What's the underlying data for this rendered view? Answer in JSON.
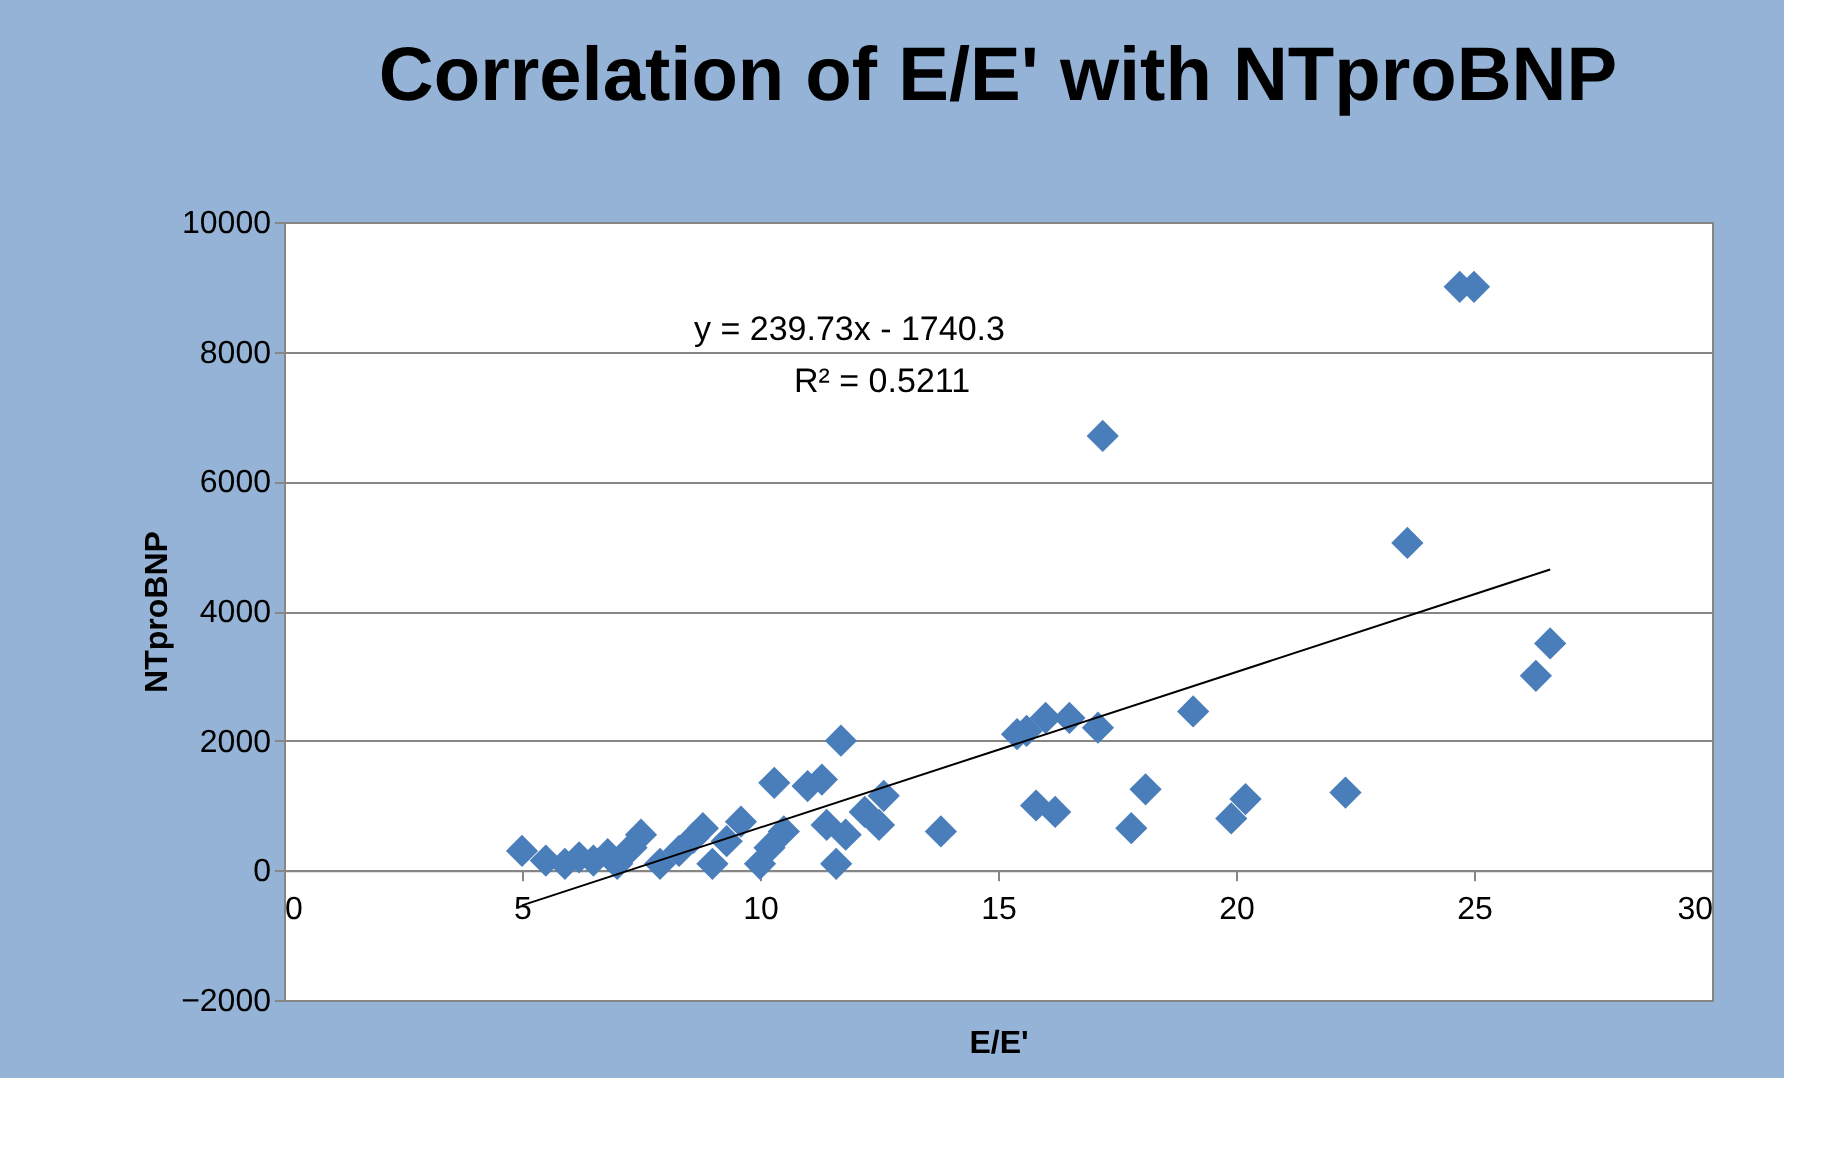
{
  "chart_data": {
    "type": "scatter",
    "title": "Correlation of E/E' with NTproBNP",
    "xlabel": "E/E'",
    "ylabel": "NTproBNP",
    "xlim": [
      0,
      30
    ],
    "xticks": [
      0,
      5,
      10,
      15,
      20,
      25,
      30
    ],
    "ylim": [
      -2000,
      10000
    ],
    "yticks": [
      -2000,
      0,
      2000,
      4000,
      6000,
      8000,
      10000
    ],
    "grid": "y",
    "marker": "diamond",
    "annotations": [
      "y = 239.73x - 1740.3",
      "R² = 0.5211"
    ],
    "series": [
      {
        "color": "#4a7ebb",
        "x": [
          5,
          5.5,
          5.9,
          6.2,
          6.5,
          6.8,
          7,
          7.3,
          7.5,
          7.9,
          8.3,
          8.6,
          8.8,
          9,
          9.3,
          9.6,
          10,
          10.2,
          10.3,
          10.5,
          11,
          11.3,
          11.4,
          11.6,
          11.7,
          11.8,
          12.2,
          12.5,
          12.6,
          13.8,
          15.4,
          15.6,
          15.8,
          16,
          16.2,
          16.5,
          17.1,
          17.2,
          17.8,
          18.1,
          19.1,
          19.9,
          20.2,
          22.3,
          23.6,
          24.7,
          25,
          26.3,
          26.6
        ],
        "values": [
          300,
          150,
          100,
          200,
          150,
          250,
          100,
          350,
          550,
          100,
          300,
          500,
          650,
          100,
          450,
          750,
          100,
          350,
          1350,
          600,
          1300,
          1400,
          700,
          100,
          2000,
          550,
          900,
          700,
          1150,
          600,
          2100,
          2150,
          1000,
          2350,
          900,
          2350,
          2200,
          6700,
          650,
          1250,
          2450,
          800,
          1100,
          1200,
          5050,
          9000,
          9000,
          3000,
          3500
        ]
      },
      {
        "type": "line",
        "color": "#000000",
        "marker": "none",
        "x": [
          5,
          26.6
        ],
        "values": [
          -540,
          4640
        ]
      }
    ]
  }
}
